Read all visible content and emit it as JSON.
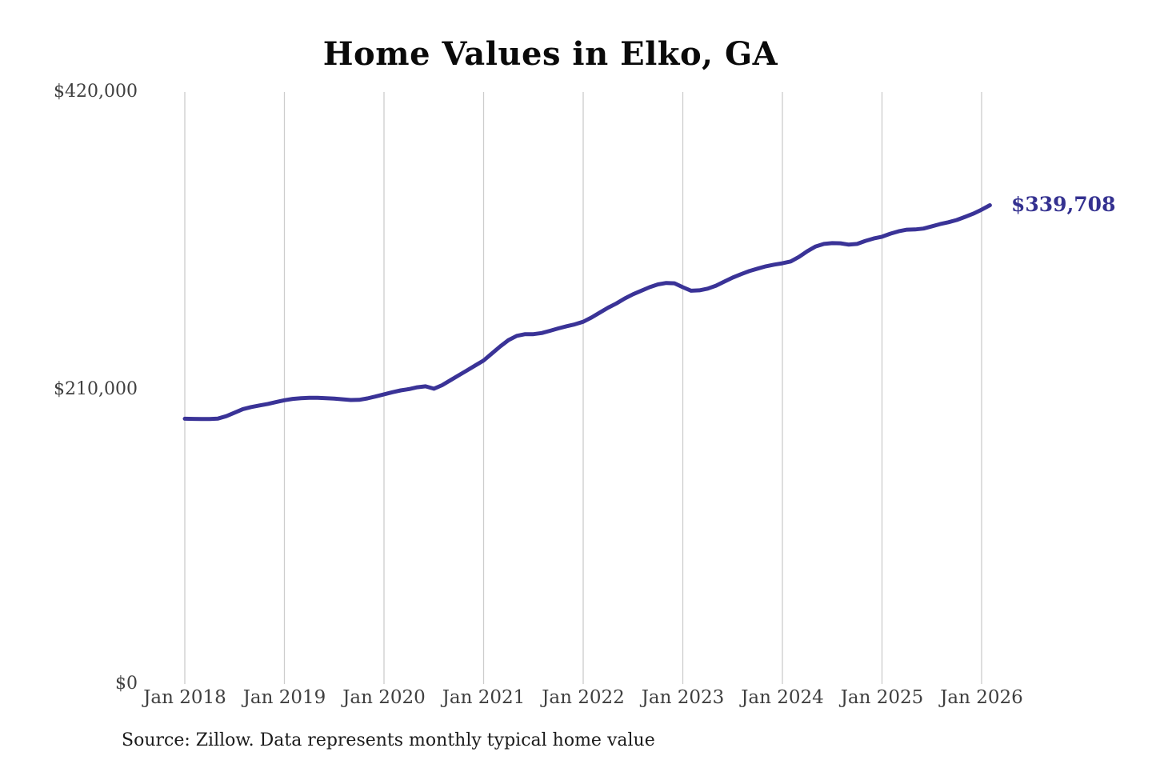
{
  "title": "Home Values in Elko, GA",
  "end_label": "$339,708",
  "source_note": "Source: Zillow. Data represents monthly typical home value",
  "colors": {
    "line": "#3a3397",
    "end_label": "#343190",
    "gridline": "#cccccc",
    "axis_text": "#3f3f3f",
    "title_text": "#0a0a0a",
    "background": "#ffffff"
  },
  "chart_data": {
    "type": "line",
    "title": "Home Values in Elko, GA",
    "xlabel": "",
    "ylabel": "",
    "x_start": "Jan 2018",
    "x_end": "Feb 2026",
    "x_frequency": "monthly",
    "x_tick_labels": [
      "Jan 2018",
      "Jan 2019",
      "Jan 2020",
      "Jan 2021",
      "Jan 2022",
      "Jan 2023",
      "Jan 2024",
      "Jan 2025",
      "Jan 2026"
    ],
    "y_tick_labels": [
      "$420,000",
      "$210,000",
      "$0"
    ],
    "ylim": [
      0,
      420000
    ],
    "grid": "vertical-only",
    "legend": "none",
    "series_name": "Typical home value",
    "values": [
      188200,
      188100,
      188000,
      188000,
      188300,
      190000,
      192500,
      195000,
      196500,
      197600,
      198700,
      200000,
      201300,
      202300,
      202800,
      203000,
      203000,
      202800,
      202500,
      202000,
      201500,
      201600,
      202600,
      204000,
      205500,
      207000,
      208300,
      209200,
      210500,
      211200,
      209500,
      212000,
      215500,
      219000,
      222500,
      226000,
      229500,
      234500,
      239500,
      244000,
      247000,
      248200,
      248200,
      249000,
      250600,
      252300,
      253800,
      255200,
      257000,
      260000,
      263500,
      267000,
      270000,
      273500,
      276500,
      279000,
      281500,
      283500,
      284500,
      284300,
      281500,
      279000,
      279300,
      280500,
      282600,
      285500,
      288300,
      290700,
      292900,
      294700,
      296300,
      297500,
      298500,
      299800,
      303000,
      307000,
      310400,
      312200,
      312800,
      312700,
      311700,
      312200,
      314400,
      316100,
      317300,
      319500,
      321200,
      322300,
      322500,
      323100,
      324700,
      326300,
      327600,
      329200,
      331400,
      333700,
      336500,
      339708
    ],
    "final_value": 339708
  }
}
